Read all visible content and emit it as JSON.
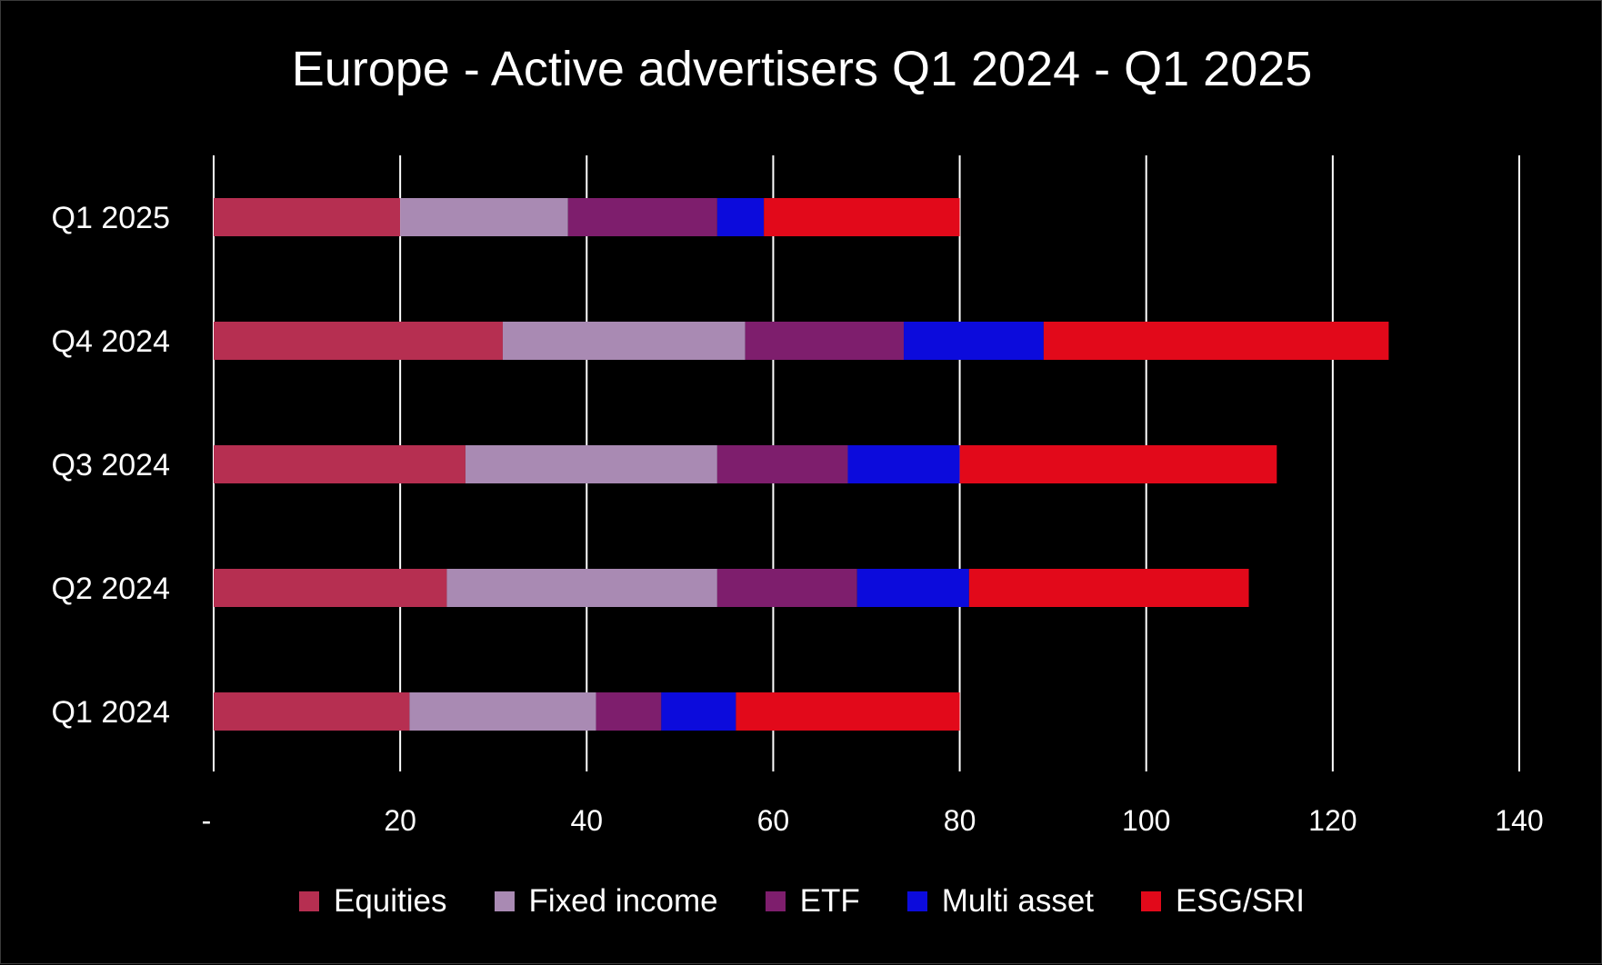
{
  "chart_data": {
    "type": "bar",
    "orientation": "horizontal",
    "stacked": true,
    "title": "Europe - Active advertisers Q1 2024 - Q1 2025",
    "xlabel": "",
    "ylabel": "",
    "categories": [
      "Q1 2025",
      "Q4 2024",
      "Q3 2024",
      "Q2 2024",
      "Q1 2024"
    ],
    "series": [
      {
        "name": "Equities",
        "color": "#b62f51",
        "values": [
          20,
          31,
          27,
          25,
          21
        ]
      },
      {
        "name": "Fixed income",
        "color": "#a98ab3",
        "values": [
          18,
          26,
          27,
          29,
          20
        ]
      },
      {
        "name": "ETF",
        "color": "#7e1e6d",
        "values": [
          16,
          17,
          14,
          15,
          7
        ]
      },
      {
        "name": "Multi asset",
        "color": "#0c0bdc",
        "values": [
          5,
          15,
          12,
          12,
          8
        ]
      },
      {
        "name": "ESG/SRI",
        "color": "#e2091a",
        "values": [
          21,
          37,
          34,
          30,
          24
        ]
      }
    ],
    "xlim": [
      0,
      140
    ],
    "x_ticks": [
      0,
      20,
      40,
      60,
      80,
      100,
      120,
      140
    ],
    "x_tick_labels": [
      "-",
      "20",
      "40",
      "60",
      "80",
      "100",
      "120",
      "140"
    ],
    "grid": true,
    "legend_position": "bottom",
    "background_color": "#000000",
    "text_color": "#ffffff",
    "gridline_color": "#ffffff"
  }
}
